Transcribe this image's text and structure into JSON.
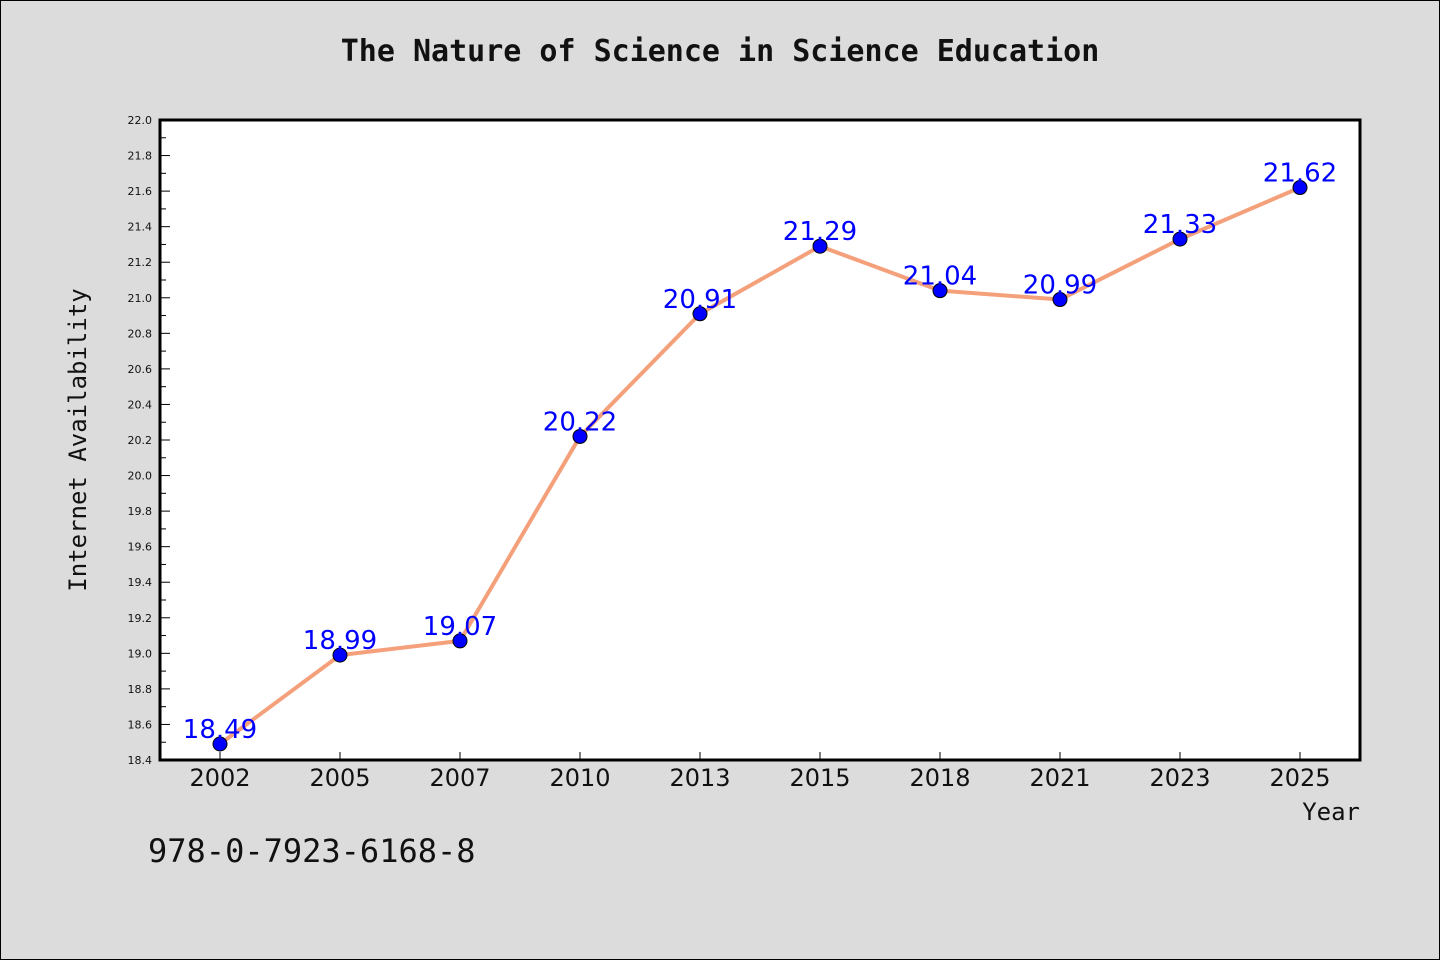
{
  "title": "The Nature of Science in Science Education",
  "footer_text": "978-0-7923-6168-8",
  "chart_data": {
    "type": "line",
    "title": "The Nature of Science in Science Education",
    "xlabel": "Year",
    "ylabel": "Internet Availability",
    "categories": [
      "2002",
      "2005",
      "2007",
      "2010",
      "2013",
      "2015",
      "2018",
      "2021",
      "2023",
      "2025"
    ],
    "series": [
      {
        "values": [
          18.49,
          18.99,
          19.07,
          20.22,
          20.91,
          21.29,
          21.04,
          20.99,
          21.33,
          21.62
        ],
        "line_color": "#f4a07a",
        "marker_color": "#0000ff"
      }
    ],
    "data_labels": [
      "18.49",
      "18.99",
      "19.07",
      "20.22",
      "20.91",
      "21.29",
      "21.04",
      "20.99",
      "21.33",
      "21.62"
    ],
    "ylim": [
      18.4,
      22.0
    ],
    "yticks": [
      "18.4",
      "18.6",
      "18.8",
      "19.0",
      "19.2",
      "19.4",
      "19.6",
      "19.8",
      "20.0",
      "20.2",
      "20.4",
      "20.6",
      "20.8",
      "21.0",
      "21.2",
      "21.4",
      "21.6",
      "21.8",
      "22.0"
    ],
    "grid": false,
    "legend": "none"
  }
}
